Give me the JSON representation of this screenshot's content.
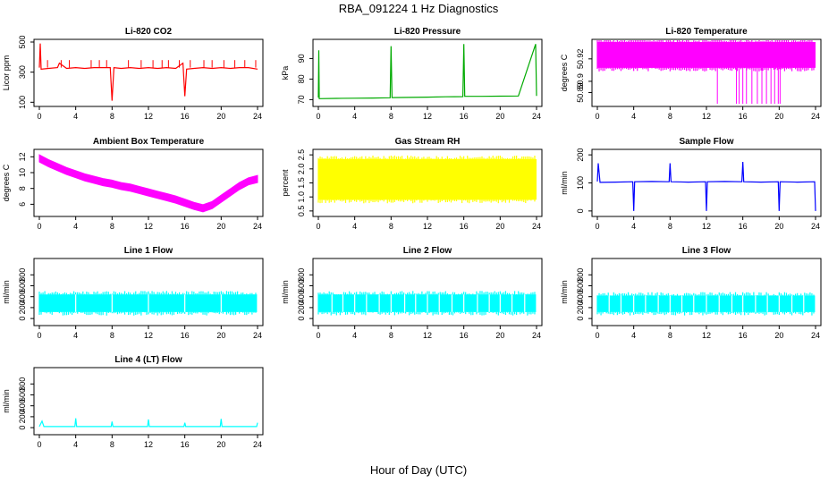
{
  "figure": {
    "title": "RBA_091224  1 Hz Diagnostics",
    "xlabel": "Hour of Day (UTC)"
  },
  "chart_data": [
    {
      "type": "line",
      "title": "Li-820 CO2",
      "ylabel": "Licor ppm",
      "color": "#ff0000",
      "xlim": [
        0,
        24
      ],
      "xticks": [
        0,
        4,
        8,
        12,
        16,
        20,
        24
      ],
      "ylim": [
        90,
        500
      ],
      "yticks": [
        100,
        300,
        500
      ],
      "x": [
        0,
        0.1,
        0.2,
        1,
        2,
        2.2,
        3,
        4,
        5,
        6,
        7,
        7.8,
        8,
        8.2,
        9,
        10,
        11,
        12,
        13,
        14,
        15,
        15.8,
        16,
        16.2,
        17,
        18,
        19,
        20,
        21,
        22,
        23,
        24
      ],
      "y": [
        330,
        490,
        320,
        325,
        330,
        360,
        325,
        330,
        325,
        330,
        330,
        330,
        110,
        330,
        325,
        330,
        325,
        330,
        325,
        330,
        325,
        360,
        140,
        320,
        325,
        330,
        325,
        330,
        325,
        330,
        330,
        320
      ],
      "spikes_hours": [
        0.9,
        2.4,
        3.3,
        5.7,
        6.6,
        7.4,
        9.8,
        11.2,
        12.5,
        13.5,
        14.2,
        15.4,
        16.6,
        18.1,
        19.0,
        20.3,
        21.5,
        22.6,
        23.8
      ]
    },
    {
      "type": "line",
      "title": "Li-820 Pressure",
      "ylabel": "kPa",
      "color": "#00aa00",
      "xlim": [
        0,
        24
      ],
      "xticks": [
        0,
        4,
        8,
        12,
        16,
        20,
        24
      ],
      "ylim": [
        68,
        98
      ],
      "yticks": [
        70,
        80,
        90
      ],
      "x": [
        0,
        0.05,
        0.1,
        2,
        4,
        6,
        7.9,
        8,
        8.1,
        10,
        12,
        14,
        15.9,
        16,
        16.1,
        18,
        20,
        22,
        23.9,
        24
      ],
      "y": [
        71,
        94,
        70.5,
        70.6,
        70.7,
        70.8,
        70.9,
        96,
        71,
        71.1,
        71.2,
        71.4,
        71.5,
        97,
        71.6,
        71.6,
        71.7,
        71.8,
        97,
        71.8
      ]
    },
    {
      "type": "band",
      "title": "Li-820 Temperature",
      "ylabel": "degrees C",
      "color": "#ff00ff",
      "xlim": [
        0,
        24
      ],
      "xticks": [
        0,
        4,
        8,
        12,
        16,
        20,
        24
      ],
      "ylim": [
        50.88,
        50.935
      ],
      "yticks": [
        50.89,
        50.9,
        50.92
      ],
      "ytick_labels": [
        "50.89",
        "50.9",
        "50.92"
      ],
      "band_low": 50.912,
      "band_high": 50.935,
      "drop_hours": [
        13.2,
        15.3,
        15.6,
        16.0,
        16.4,
        17.0,
        17.6,
        18.1,
        18.6,
        19.1,
        19.5,
        19.9,
        20.1
      ],
      "drop_value": 50.88
    },
    {
      "type": "band",
      "title": "Ambient Box Temperature",
      "ylabel": "degrees C",
      "color": "#ff00ff",
      "xlim": [
        0,
        24
      ],
      "xticks": [
        0,
        4,
        8,
        12,
        16,
        20,
        24
      ],
      "ylim": [
        4.8,
        12.6
      ],
      "yticks": [
        6,
        8,
        10,
        12
      ],
      "x": [
        0,
        1,
        2,
        3,
        4,
        5,
        6,
        7,
        8,
        9,
        10,
        11,
        12,
        13,
        14,
        15,
        16,
        17,
        18,
        19,
        20,
        21,
        22,
        23,
        24
      ],
      "y": [
        11.8,
        11.2,
        10.7,
        10.2,
        9.8,
        9.4,
        9.1,
        8.8,
        8.6,
        8.3,
        8.1,
        7.8,
        7.5,
        7.2,
        6.9,
        6.6,
        6.2,
        5.8,
        5.5,
        5.9,
        6.7,
        7.5,
        8.3,
        8.9,
        9.2
      ],
      "half_width": 0.45
    },
    {
      "type": "band",
      "title": "Gas Stream RH",
      "ylabel": "percent",
      "color": "#ffff00",
      "xlim": [
        0,
        24
      ],
      "xticks": [
        0,
        4,
        8,
        12,
        16,
        20,
        24
      ],
      "ylim": [
        0.4,
        2.6
      ],
      "yticks": [
        0.5,
        1.0,
        1.5,
        2.0,
        2.5
      ],
      "ytick_labels": [
        "0.5",
        "1.0",
        "1.5",
        "2.0",
        "2.5"
      ],
      "band_low": 0.9,
      "band_high": 2.35
    },
    {
      "type": "line",
      "title": "Sample Flow",
      "ylabel": "ml/min",
      "color": "#0000ff",
      "xlim": [
        0,
        24
      ],
      "xticks": [
        0,
        4,
        8,
        12,
        16,
        20,
        24
      ],
      "ylim": [
        -10,
        210
      ],
      "yticks": [
        0,
        100,
        200
      ],
      "x": [
        0,
        0.1,
        0.3,
        2,
        3.9,
        4.0,
        4.1,
        6,
        7.9,
        8,
        8.1,
        10,
        11.9,
        12,
        12.1,
        14,
        15.9,
        16,
        16.1,
        18,
        19.9,
        20,
        20.1,
        22,
        23.9,
        24
      ],
      "y": [
        105,
        170,
        102,
        103,
        104,
        0,
        104,
        105,
        104,
        170,
        104,
        103,
        104,
        0,
        104,
        105,
        104,
        175,
        104,
        103,
        104,
        0,
        104,
        103,
        104,
        0
      ]
    },
    {
      "type": "band",
      "title": "Line 1 Flow",
      "ylabel": "ml/min",
      "color": "#00ffff",
      "xlim": [
        0,
        24
      ],
      "xticks": [
        0,
        4,
        8,
        12,
        16,
        20,
        24
      ],
      "ylim": [
        -80,
        1050
      ],
      "yticks": [
        0,
        200,
        400,
        600,
        800
      ],
      "band_low": 120,
      "band_high": 440,
      "gap_hours": [
        4,
        8,
        12,
        16,
        20,
        24
      ]
    },
    {
      "type": "band",
      "title": "Line 2 Flow",
      "ylabel": "ml/min",
      "color": "#00ffff",
      "xlim": [
        0,
        24
      ],
      "xticks": [
        0,
        4,
        8,
        12,
        16,
        20,
        24
      ],
      "ylim": [
        -80,
        1050
      ],
      "yticks": [
        0,
        200,
        400,
        600,
        800
      ],
      "band_low": 120,
      "band_high": 440,
      "gap_hours": [
        1.5,
        2.7,
        4,
        5.3,
        6.7,
        8,
        9.5,
        10.7,
        12,
        13.3,
        14.7,
        16,
        17.5,
        18.8,
        20,
        21.3,
        22.7,
        24
      ]
    },
    {
      "type": "band",
      "title": "Line 3 Flow",
      "ylabel": "ml/min",
      "color": "#00ffff",
      "xlim": [
        0,
        24
      ],
      "xticks": [
        0,
        4,
        8,
        12,
        16,
        20,
        24
      ],
      "ylim": [
        -80,
        1050
      ],
      "yticks": [
        0,
        200,
        400,
        600,
        800
      ],
      "band_low": 120,
      "band_high": 420,
      "gap_hours": [
        1.3,
        2.6,
        4,
        5.3,
        6.7,
        8,
        9.3,
        10.6,
        12,
        13.4,
        14.8,
        16,
        17.4,
        18.7,
        20,
        21.4,
        22.7,
        24
      ]
    },
    {
      "type": "line",
      "title": "Line 4 (LT) Flow",
      "ylabel": "ml/min",
      "color": "#00ffff",
      "xlim": [
        0,
        24
      ],
      "xticks": [
        0,
        4,
        8,
        12,
        16,
        20,
        24
      ],
      "ylim": [
        -80,
        1050
      ],
      "yticks": [
        0,
        200,
        400,
        600,
        800
      ],
      "x": [
        0,
        0.3,
        0.5,
        3.9,
        4,
        4.1,
        7.9,
        8,
        8.1,
        11.9,
        12,
        12.1,
        15.9,
        16,
        16.1,
        19.9,
        20,
        20.1,
        23.9,
        24
      ],
      "y": [
        20,
        120,
        20,
        20,
        170,
        20,
        20,
        110,
        20,
        20,
        150,
        20,
        20,
        90,
        20,
        20,
        160,
        20,
        20,
        90
      ]
    }
  ]
}
